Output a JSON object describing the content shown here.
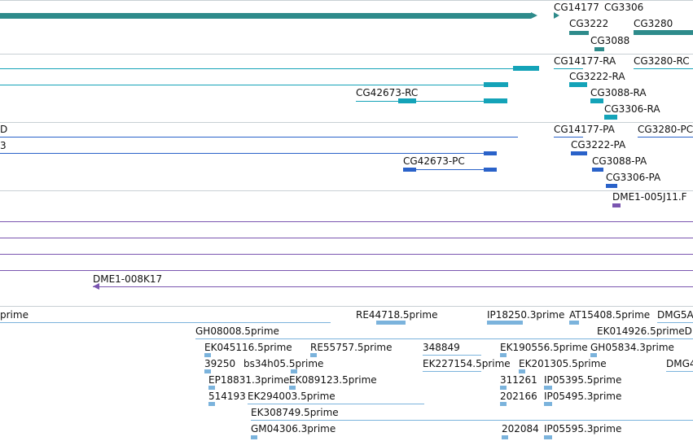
{
  "tracks": {
    "genes": {
      "color": "#2e8b8b",
      "labels": [
        "CG14177",
        "CG3306",
        "CG3222",
        "CG3280",
        "CG3088"
      ]
    },
    "transcripts": {
      "color": "#14a3b8",
      "labels": [
        "CG14177-RA",
        "CG3280-RC",
        "CG3222-RA",
        "CG42673-RC",
        "CG3088-RA",
        "CG3306-RA"
      ]
    },
    "proteins": {
      "color": "#2a62c9",
      "labels": [
        "D",
        "3",
        "CG14177-PA",
        "CG3280-PC",
        "CG3222-PA",
        "CG42673-PC",
        "CG3088-PA",
        "CG3306-PA"
      ]
    },
    "clones": {
      "color": "#7a55b0",
      "labels": [
        "DME1-005J11.F",
        "DME1-008K17"
      ]
    },
    "ests": {
      "color": "#7bb3dc",
      "labels": [
        "prime",
        "RE44718.5prime",
        "IP18250.3prime",
        "AT15408.5prime",
        "DMG5A",
        "GH08008.5prime",
        "EK014926.5primeD",
        "EK045116.5prime",
        "RE55757.5prime",
        "348849",
        "EK190556.5prime",
        "GH05834.3prime",
        "39250",
        "bs34h05.5prime",
        "EK227154.5prime",
        "EK201305.5prime",
        "DMG4",
        "EP18831.3prime",
        "EK089123.5prime",
        "311261",
        "IP05395.5prime",
        "514193",
        "EK294003.5prime",
        "202166",
        "IP05495.3prime",
        "EK308749.5prime",
        "GM04306.3prime",
        "202084",
        "IP05595.3prime"
      ]
    }
  }
}
